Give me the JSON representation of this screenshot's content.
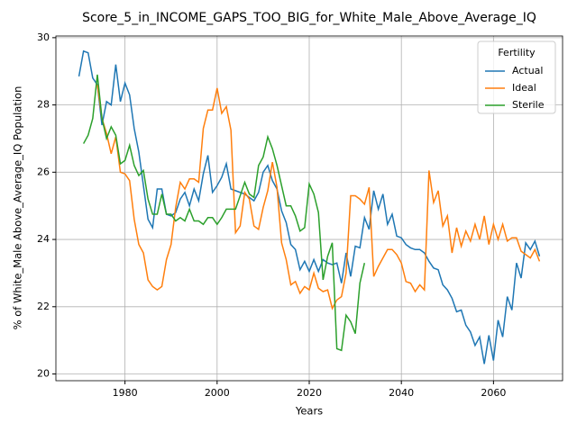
{
  "chart_data": {
    "type": "line",
    "title": "Score_5_in_INCOME_GAPS_TOO_BIG_for_White_Male_Above_Average_IQ",
    "x_label": "Years",
    "y_label": "% of White_Male Above_Average_IQ Population",
    "legend_title": "Fertility",
    "legend_position": "upper right",
    "xlim": [
      1965,
      2075
    ],
    "ylim": [
      19.8,
      30.05
    ],
    "xticks": [
      1980,
      2000,
      2020,
      2040,
      2060
    ],
    "yticks": [
      20,
      22,
      24,
      26,
      28,
      30
    ],
    "grid": true,
    "x": [
      1970,
      1971,
      1972,
      1973,
      1974,
      1975,
      1976,
      1977,
      1978,
      1979,
      1980,
      1981,
      1982,
      1983,
      1984,
      1985,
      1986,
      1987,
      1988,
      1989,
      1990,
      1991,
      1992,
      1993,
      1994,
      1995,
      1996,
      1997,
      1998,
      1999,
      2000,
      2001,
      2002,
      2003,
      2004,
      2005,
      2006,
      2007,
      2008,
      2009,
      2010,
      2011,
      2012,
      2013,
      2014,
      2015,
      2016,
      2017,
      2018,
      2019,
      2020,
      2021,
      2022,
      2023,
      2024,
      2025,
      2026,
      2027,
      2028,
      2029,
      2030,
      2031,
      2032,
      2033,
      2034,
      2035,
      2036,
      2037,
      2038,
      2039,
      2040,
      2041,
      2042,
      2043,
      2044,
      2045,
      2046,
      2047,
      2048,
      2049,
      2050,
      2051,
      2052,
      2053,
      2054,
      2055,
      2056,
      2057,
      2058,
      2059,
      2060,
      2061,
      2062,
      2063,
      2064,
      2065,
      2066,
      2067,
      2068,
      2069,
      2070
    ],
    "series": [
      {
        "name": "Actual",
        "color": "#1f77b4",
        "values": [
          28.85,
          29.6,
          29.55,
          28.8,
          28.6,
          27.4,
          28.1,
          28.0,
          29.2,
          28.1,
          28.65,
          28.3,
          27.3,
          26.6,
          25.6,
          24.6,
          24.35,
          25.5,
          25.5,
          24.75,
          24.7,
          24.8,
          25.2,
          25.4,
          25.0,
          25.5,
          25.15,
          25.95,
          26.5,
          25.4,
          25.6,
          25.85,
          26.25,
          25.5,
          25.45,
          25.4,
          25.35,
          25.25,
          25.15,
          25.4,
          26.0,
          26.2,
          25.75,
          25.5,
          24.85,
          24.5,
          23.85,
          23.7,
          23.1,
          23.35,
          23.05,
          23.4,
          23.05,
          23.4,
          23.3,
          23.25,
          23.3,
          22.7,
          23.6,
          22.9,
          23.8,
          23.75,
          24.65,
          24.3,
          25.45,
          24.9,
          25.35,
          24.45,
          24.75,
          24.1,
          24.05,
          23.85,
          23.75,
          23.7,
          23.7,
          23.6,
          23.35,
          23.15,
          23.1,
          22.65,
          22.5,
          22.25,
          21.85,
          21.9,
          21.45,
          21.25,
          20.85,
          21.1,
          20.3,
          21.15,
          20.4,
          21.6,
          21.1,
          22.3,
          21.9,
          23.3,
          22.85,
          23.9,
          23.7,
          23.95,
          23.5
        ]
      },
      {
        "name": "Ideal",
        "color": "#ff7f0e",
        "values": [
          null,
          null,
          null,
          null,
          28.6,
          27.6,
          27.15,
          26.55,
          27.05,
          26.0,
          25.95,
          25.75,
          24.6,
          23.85,
          23.6,
          22.8,
          22.6,
          22.5,
          22.6,
          23.4,
          23.85,
          24.95,
          25.7,
          25.5,
          25.8,
          25.8,
          25.7,
          27.3,
          27.85,
          27.85,
          28.5,
          27.75,
          27.95,
          27.25,
          24.2,
          24.4,
          25.4,
          25.2,
          24.4,
          24.3,
          24.95,
          25.45,
          26.3,
          25.55,
          23.9,
          23.4,
          22.65,
          22.75,
          22.4,
          22.6,
          22.5,
          23.0,
          22.55,
          22.45,
          22.5,
          21.95,
          22.2,
          22.3,
          23.0,
          25.3,
          25.3,
          25.2,
          25.05,
          25.55,
          22.9,
          23.2,
          23.45,
          23.7,
          23.7,
          23.55,
          23.3,
          22.75,
          22.7,
          22.45,
          22.65,
          22.5,
          26.05,
          25.1,
          25.45,
          24.4,
          24.7,
          23.6,
          24.35,
          23.8,
          24.25,
          23.95,
          24.45,
          24.0,
          24.7,
          23.85,
          24.45,
          24.0,
          24.45,
          23.95,
          24.05,
          24.05,
          23.65,
          23.55,
          23.45,
          23.7,
          23.35
        ]
      },
      {
        "name": "Sterile",
        "color": "#2ca02c",
        "values": [
          null,
          26.85,
          27.1,
          27.6,
          28.9,
          27.6,
          27.0,
          27.35,
          27.1,
          26.25,
          26.35,
          26.8,
          26.2,
          25.9,
          26.05,
          25.2,
          24.75,
          24.75,
          25.35,
          24.75,
          24.75,
          24.55,
          24.65,
          24.55,
          24.9,
          24.55,
          24.55,
          24.45,
          24.65,
          24.65,
          24.45,
          24.65,
          24.9,
          24.9,
          24.9,
          25.3,
          25.7,
          25.35,
          25.25,
          26.2,
          26.45,
          27.05,
          26.7,
          26.2,
          25.6,
          25.0,
          25.0,
          24.7,
          24.25,
          24.35,
          25.65,
          25.35,
          24.8,
          22.8,
          23.5,
          23.9,
          20.75,
          20.7,
          21.75,
          21.55,
          21.2,
          22.7,
          23.3,
          null,
          null,
          null,
          null,
          null,
          null,
          null,
          null,
          null,
          null,
          null,
          null,
          null,
          null,
          null,
          null,
          null,
          null,
          null,
          null,
          null,
          null,
          null,
          null,
          null,
          null,
          null,
          null,
          null,
          null,
          null,
          null,
          null,
          null,
          null,
          null,
          null,
          null
        ]
      }
    ]
  }
}
